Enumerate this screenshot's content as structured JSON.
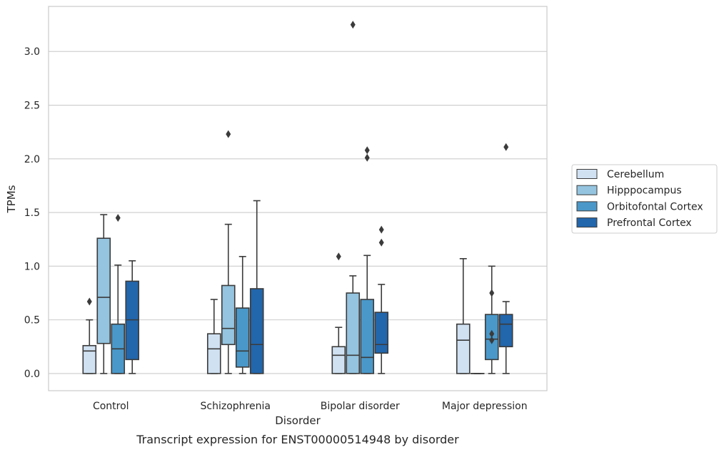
{
  "caption": "Transcript expression for ENST00000514948 by disorder",
  "chart_data": {
    "type": "box",
    "xlabel": "Disorder",
    "ylabel": "TPMs",
    "ylim": [
      -0.16,
      3.42
    ],
    "yticks": [
      "0.0",
      "0.5",
      "1.0",
      "1.5",
      "2.0",
      "2.5",
      "3.0"
    ],
    "ytick_values": [
      0,
      0.5,
      1.0,
      1.5,
      2.0,
      2.5,
      3.0
    ],
    "grid": "horizontal",
    "legend_position": "right",
    "categories": [
      "Control",
      "Schizophrenia",
      "Bipolar disorder",
      "Major depression"
    ],
    "series": [
      {
        "name": "Cerebellum",
        "color": "#d0e1f2",
        "boxes": [
          {
            "q1": 0.0,
            "median": 0.21,
            "q3": 0.26,
            "whislo": 0.0,
            "whishi": 0.5,
            "fliers": [
              0.67
            ]
          },
          {
            "q1": 0.0,
            "median": 0.23,
            "q3": 0.37,
            "whislo": 0.0,
            "whishi": 0.69,
            "fliers": []
          },
          {
            "q1": 0.0,
            "median": 0.17,
            "q3": 0.25,
            "whislo": 0.0,
            "whishi": 0.43,
            "fliers": [
              1.09
            ]
          },
          {
            "q1": 0.0,
            "median": 0.31,
            "q3": 0.46,
            "whislo": 0.0,
            "whishi": 1.07,
            "fliers": []
          }
        ]
      },
      {
        "name": "Hipppocampus",
        "color": "#94c4df",
        "boxes": [
          {
            "q1": 0.28,
            "median": 0.71,
            "q3": 1.26,
            "whislo": 0.0,
            "whishi": 1.48,
            "fliers": []
          },
          {
            "q1": 0.27,
            "median": 0.42,
            "q3": 0.82,
            "whislo": 0.0,
            "whishi": 1.39,
            "fliers": [
              2.23
            ]
          },
          {
            "q1": 0.0,
            "median": 0.17,
            "q3": 0.75,
            "whislo": 0.0,
            "whishi": 0.91,
            "fliers": [
              3.25
            ]
          },
          {
            "q1": 0.0,
            "median": 0.0,
            "q3": 0.0,
            "whislo": 0.0,
            "whishi": 0.0,
            "fliers": []
          }
        ]
      },
      {
        "name": "Orbitofontal Cortex",
        "color": "#4a98c9",
        "boxes": [
          {
            "q1": 0.0,
            "median": 0.23,
            "q3": 0.46,
            "whislo": 0.0,
            "whishi": 1.01,
            "fliers": [
              1.45
            ]
          },
          {
            "q1": 0.06,
            "median": 0.21,
            "q3": 0.61,
            "whislo": 0.0,
            "whishi": 1.09,
            "fliers": []
          },
          {
            "q1": 0.0,
            "median": 0.15,
            "q3": 0.69,
            "whislo": 0.0,
            "whishi": 1.1,
            "fliers": [
              2.01,
              2.08
            ]
          },
          {
            "q1": 0.13,
            "median": 0.32,
            "q3": 0.55,
            "whislo": 0.0,
            "whishi": 1.0,
            "fliers": [
              0.31,
              0.37,
              0.75
            ]
          }
        ]
      },
      {
        "name": "Prefrontal Cortex",
        "color": "#2266ac",
        "boxes": [
          {
            "q1": 0.13,
            "median": 0.5,
            "q3": 0.86,
            "whislo": 0.0,
            "whishi": 1.05,
            "fliers": []
          },
          {
            "q1": 0.0,
            "median": 0.27,
            "q3": 0.79,
            "whislo": 0.0,
            "whishi": 1.61,
            "fliers": []
          },
          {
            "q1": 0.19,
            "median": 0.27,
            "q3": 0.57,
            "whislo": 0.0,
            "whishi": 0.83,
            "fliers": [
              1.22,
              1.34
            ]
          },
          {
            "q1": 0.25,
            "median": 0.46,
            "q3": 0.55,
            "whislo": 0.0,
            "whishi": 0.67,
            "fliers": [
              2.11
            ]
          }
        ]
      }
    ]
  }
}
